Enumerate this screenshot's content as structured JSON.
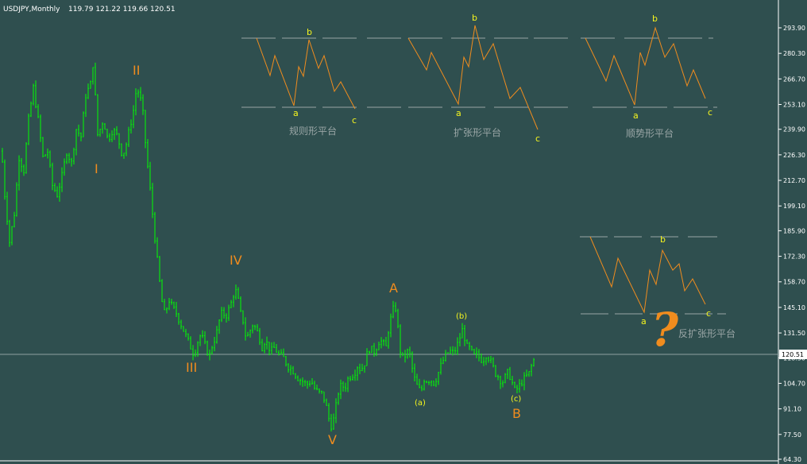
{
  "header": {
    "symbol": "USDJPY,Monthly",
    "ohlc": "119.79 121.22 119.66 120.51"
  },
  "current_price": "120.51",
  "chart_data": {
    "type": "bar",
    "title": "USDJPY,Monthly",
    "y_axis_ticks": [
      "293.90",
      "280.30",
      "266.70",
      "253.10",
      "239.90",
      "226.30",
      "212.70",
      "199.10",
      "185.90",
      "172.30",
      "158.70",
      "145.10",
      "131.50",
      "118.30",
      "104.70",
      "91.10",
      "77.50",
      "64.30"
    ],
    "ylim": [
      64.3,
      300.0
    ],
    "price_path": [
      [
        0,
        240
      ],
      [
        6,
        205
      ],
      [
        12,
        180
      ],
      [
        18,
        195
      ],
      [
        24,
        225
      ],
      [
        30,
        218
      ],
      [
        36,
        245
      ],
      [
        42,
        262
      ],
      [
        48,
        245
      ],
      [
        54,
        225
      ],
      [
        60,
        228
      ],
      [
        66,
        210
      ],
      [
        72,
        205
      ],
      [
        78,
        215
      ],
      [
        84,
        228
      ],
      [
        90,
        222
      ],
      [
        96,
        240
      ],
      [
        102,
        236
      ],
      [
        108,
        258
      ],
      [
        114,
        264
      ],
      [
        118,
        278
      ],
      [
        122,
        236
      ],
      [
        126,
        240
      ],
      [
        130,
        245
      ],
      [
        136,
        234
      ],
      [
        142,
        240
      ],
      [
        148,
        236
      ],
      [
        154,
        226
      ],
      [
        158,
        230
      ],
      [
        164,
        242
      ],
      [
        168,
        250
      ],
      [
        172,
        262
      ],
      [
        176,
        258
      ],
      [
        180,
        248
      ],
      [
        184,
        228
      ],
      [
        188,
        212
      ],
      [
        192,
        195
      ],
      [
        196,
        178
      ],
      [
        200,
        162
      ],
      [
        204,
        148
      ],
      [
        208,
        140
      ],
      [
        212,
        150
      ],
      [
        216,
        146
      ],
      [
        222,
        142
      ],
      [
        228,
        136
      ],
      [
        234,
        130
      ],
      [
        240,
        124
      ],
      [
        244,
        120
      ],
      [
        248,
        126
      ],
      [
        252,
        130
      ],
      [
        256,
        128
      ],
      [
        260,
        122
      ],
      [
        264,
        120
      ],
      [
        268,
        126
      ],
      [
        272,
        130
      ],
      [
        276,
        138
      ],
      [
        280,
        143
      ],
      [
        284,
        140
      ],
      [
        290,
        146
      ],
      [
        294,
        152
      ],
      [
        298,
        154
      ],
      [
        302,
        143
      ],
      [
        306,
        138
      ],
      [
        310,
        128
      ],
      [
        314,
        132
      ],
      [
        318,
        136
      ],
      [
        322,
        134
      ],
      [
        326,
        130
      ],
      [
        330,
        124
      ],
      [
        334,
        128
      ],
      [
        338,
        124
      ],
      [
        342,
        122
      ],
      [
        346,
        124
      ],
      [
        350,
        120
      ],
      [
        356,
        119
      ],
      [
        362,
        114
      ],
      [
        368,
        112
      ],
      [
        374,
        108
      ],
      [
        380,
        106
      ],
      [
        386,
        104
      ],
      [
        392,
        106
      ],
      [
        396,
        102
      ],
      [
        400,
        100
      ],
      [
        406,
        99
      ],
      [
        410,
        94
      ],
      [
        414,
        86
      ],
      [
        418,
        81
      ],
      [
        422,
        90
      ],
      [
        426,
        100
      ],
      [
        430,
        104
      ],
      [
        434,
        102
      ],
      [
        438,
        107
      ],
      [
        442,
        109
      ],
      [
        446,
        110
      ],
      [
        450,
        114
      ],
      [
        454,
        112
      ],
      [
        458,
        114
      ],
      [
        462,
        120
      ],
      [
        466,
        124
      ],
      [
        470,
        121
      ],
      [
        474,
        124
      ],
      [
        478,
        128
      ],
      [
        482,
        126
      ],
      [
        486,
        124
      ],
      [
        490,
        136
      ],
      [
        494,
        142
      ],
      [
        497,
        148
      ],
      [
        500,
        138
      ],
      [
        504,
        122
      ],
      [
        508,
        117
      ],
      [
        512,
        122
      ],
      [
        516,
        120
      ],
      [
        520,
        110
      ],
      [
        524,
        104
      ],
      [
        530,
        100
      ],
      [
        534,
        107
      ],
      [
        538,
        106
      ],
      [
        542,
        107
      ],
      [
        546,
        105
      ],
      [
        550,
        108
      ],
      [
        554,
        113
      ],
      [
        558,
        117
      ],
      [
        562,
        120
      ],
      [
        566,
        122
      ],
      [
        570,
        121
      ],
      [
        574,
        123
      ],
      [
        578,
        128
      ],
      [
        582,
        133
      ],
      [
        585,
        129
      ],
      [
        588,
        124
      ],
      [
        592,
        123
      ],
      [
        596,
        119
      ],
      [
        600,
        120
      ],
      [
        604,
        118
      ],
      [
        608,
        117
      ],
      [
        612,
        120
      ],
      [
        616,
        118
      ],
      [
        620,
        114
      ],
      [
        624,
        110
      ],
      [
        628,
        108
      ],
      [
        632,
        105
      ],
      [
        636,
        108
      ],
      [
        640,
        111
      ],
      [
        644,
        106
      ],
      [
        648,
        101
      ],
      [
        652,
        102
      ],
      [
        656,
        105
      ],
      [
        660,
        107
      ],
      [
        666,
        110
      ],
      [
        670,
        115
      ],
      [
        674,
        119
      ]
    ],
    "wave_labels": [
      "I",
      "II",
      "III",
      "IV",
      "V",
      "A",
      "B"
    ],
    "sub_wave_labels": [
      "(a)",
      "(b)",
      "(c)"
    ],
    "current_value": 120.51
  },
  "diagrams": [
    {
      "title": "规则形平台",
      "a": "a",
      "b": "b",
      "c": "c"
    },
    {
      "title": "扩张形平台",
      "a": "a",
      "b": "b",
      "c": "c"
    },
    {
      "title": "顺势形平台",
      "a": "a",
      "b": "b",
      "c": "c"
    },
    {
      "title": "反扩张形平台",
      "a": "a",
      "b": "b",
      "c": "c",
      "question": "?"
    }
  ]
}
